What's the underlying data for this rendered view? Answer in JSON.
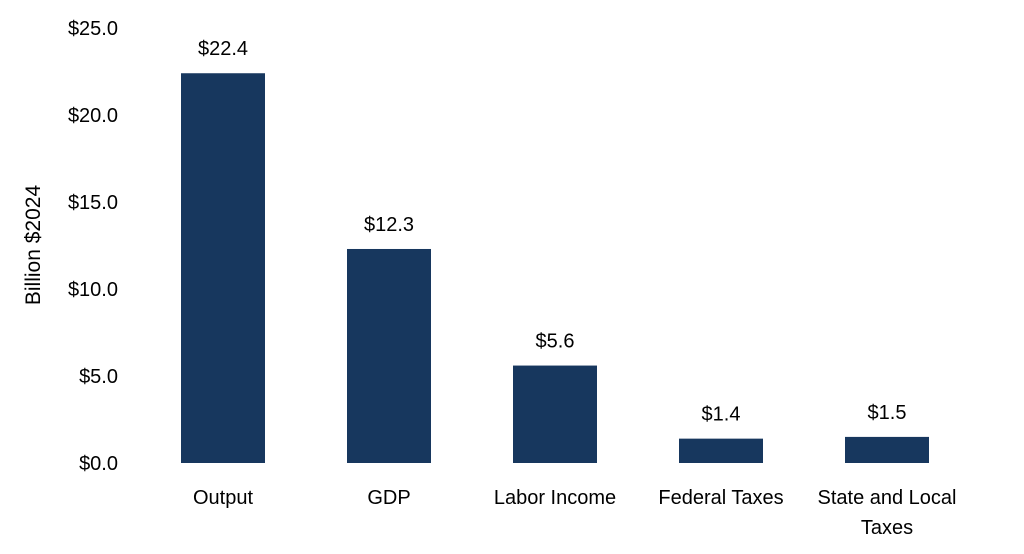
{
  "chart_data": {
    "type": "bar",
    "title": "",
    "xlabel": "",
    "ylabel": "Billion $2024",
    "ylim": [
      0,
      25
    ],
    "yticks": [
      0,
      5,
      10,
      15,
      20,
      25
    ],
    "ytick_labels": [
      "$0.0",
      "$5.0",
      "$10.0",
      "$15.0",
      "$20.0",
      "$25.0"
    ],
    "categories": [
      [
        "Output"
      ],
      [
        "GDP"
      ],
      [
        "Labor Income"
      ],
      [
        "Federal Taxes"
      ],
      [
        "State and Local",
        "Taxes"
      ]
    ],
    "values": [
      22.4,
      12.3,
      5.6,
      1.4,
      1.5
    ],
    "value_labels": [
      "$22.4",
      "$12.3",
      "$5.6",
      "$1.4",
      "$1.5"
    ],
    "bar_color": "#17375E",
    "grid": false,
    "legend": "none"
  }
}
